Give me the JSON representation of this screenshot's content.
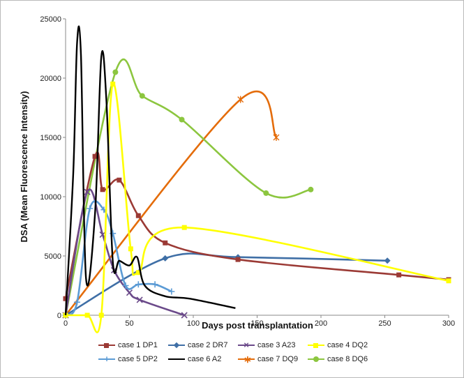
{
  "chart_data": {
    "type": "line",
    "title": "",
    "xlabel": "Days post transplantation",
    "ylabel": "DSA (Mean Fluorescence Intensity)",
    "xlim": [
      0,
      300
    ],
    "ylim": [
      0,
      25000
    ],
    "x_ticks": [
      "0",
      "50",
      "100",
      "150",
      "200",
      "250",
      "300"
    ],
    "y_ticks": [
      "0",
      "5000",
      "10000",
      "15000",
      "20000",
      "25000"
    ],
    "grid": false,
    "legend_position": "bottom",
    "series": [
      {
        "name": "case 1 DP1",
        "color": "#9b3a35",
        "marker": "square",
        "x": [
          0,
          23,
          29,
          42,
          57,
          78,
          135,
          261,
          300
        ],
        "y": [
          1400,
          13400,
          10600,
          11400,
          8400,
          6100,
          4700,
          3400,
          3000
        ]
      },
      {
        "name": "case 2 DR7",
        "color": "#3f6fa6",
        "marker": "diamond",
        "x": [
          0,
          78,
          135,
          252
        ],
        "y": [
          0,
          4800,
          4900,
          4600
        ]
      },
      {
        "name": "case 3 A23",
        "color": "#6b4a8a",
        "marker": "x",
        "x": [
          0,
          17,
          29,
          38,
          50,
          58,
          93
        ],
        "y": [
          0,
          10400,
          6800,
          3800,
          1900,
          1300,
          0
        ]
      },
      {
        "name": "case 4 DQ2",
        "color": "#ffff00",
        "marker": "square",
        "x": [
          0,
          17,
          28,
          37,
          51,
          57,
          93,
          300
        ],
        "y": [
          0,
          0,
          0,
          19500,
          5600,
          3600,
          7400,
          2900
        ]
      },
      {
        "name": "case 5 DP2",
        "color": "#5b9bd5",
        "marker": "plus",
        "x": [
          0,
          9,
          19,
          30,
          37,
          47,
          57,
          70,
          83
        ],
        "y": [
          0,
          1100,
          9000,
          8900,
          6900,
          2500,
          2600,
          2600,
          2000
        ]
      },
      {
        "name": "case 6 A2",
        "color": "#000000",
        "marker": "none",
        "x": [
          0,
          6,
          9,
          12,
          16,
          23,
          28,
          32,
          37,
          42,
          50,
          56,
          62,
          78,
          97,
          133
        ],
        "y": [
          0,
          12000,
          23000,
          22000,
          3100,
          8500,
          21800,
          18000,
          4500,
          4600,
          4200,
          4900,
          2500,
          1600,
          1400,
          600
        ]
      },
      {
        "name": "case 7 DQ9",
        "color": "#e46c0a",
        "marker": "star",
        "x": [
          0,
          137,
          165
        ],
        "y": [
          0,
          18200,
          15000
        ]
      },
      {
        "name": "case 8 DQ6",
        "color": "#8cc63f",
        "marker": "circle",
        "x": [
          0,
          39,
          60,
          91,
          157,
          192
        ],
        "y": [
          0,
          20500,
          18500,
          16500,
          10300,
          10600
        ]
      }
    ]
  }
}
